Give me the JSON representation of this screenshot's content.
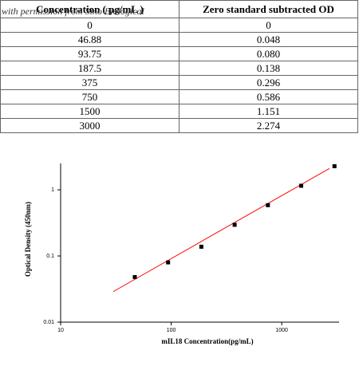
{
  "table": {
    "header": [
      "Concentration ( pg/mL )",
      "Zero standard subtracted OD"
    ],
    "rows": [
      [
        "0",
        "0"
      ],
      [
        "46.88",
        "0.048"
      ],
      [
        "93.75",
        "0.080"
      ],
      [
        "187.5",
        "0.138"
      ],
      [
        "375",
        "0.296"
      ],
      [
        "750",
        "0.586"
      ],
      [
        "1500",
        "1.151"
      ],
      [
        "3000",
        "2.274"
      ]
    ],
    "watermark": "with permission from Sino Biological"
  },
  "chart_data": {
    "type": "scatter",
    "x": [
      46.88,
      93.75,
      187.5,
      375,
      750,
      1500,
      3000
    ],
    "values": [
      0.048,
      0.08,
      0.138,
      0.296,
      0.586,
      1.151,
      2.274
    ],
    "color": "#000000",
    "fit_line": {
      "x": [
        30,
        2700
      ],
      "values": [
        0.029,
        2.1
      ],
      "color": "#ff0000"
    },
    "xlim": [
      10,
      3300
    ],
    "ylim": [
      0.01,
      2.5
    ],
    "xticks": [
      10,
      100,
      1000
    ],
    "yticks": [
      0.01,
      0.1,
      1
    ],
    "xscale": "log",
    "yscale": "log",
    "xlabel": "mIL18  Concentration(pg/mL)",
    "ylabel": "Optical Density (450nm)"
  }
}
